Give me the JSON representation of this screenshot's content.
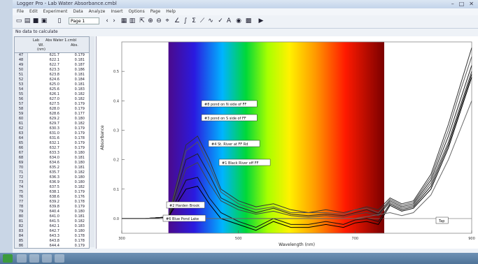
{
  "window": {
    "title": "Logger Pro - Lab Water Absorbance.cmbl",
    "controls": [
      "–",
      "□",
      "✕"
    ]
  },
  "menu": [
    "File",
    "Edit",
    "Experiment",
    "Data",
    "Analyze",
    "Insert",
    "Options",
    "Page",
    "Help"
  ],
  "toolbar": {
    "page": "Page 1"
  },
  "namebox": "No data to calculate",
  "table": {
    "title": "Lab",
    "subtitle": "Abs Water 1.cmbl",
    "col_x": "Wl.",
    "col_y": "Abs.",
    "units": "(nm)",
    "rows": [
      {
        "n": "47",
        "x": "621.7",
        "y": "0.179"
      },
      {
        "n": "48",
        "x": "622.1",
        "y": "0.181"
      },
      {
        "n": "49",
        "x": "622.7",
        "y": "0.187"
      },
      {
        "n": "50",
        "x": "623.3",
        "y": "0.186"
      },
      {
        "n": "51",
        "x": "623.8",
        "y": "0.181"
      },
      {
        "n": "52",
        "x": "624.6",
        "y": "0.184"
      },
      {
        "n": "53",
        "x": "625.0",
        "y": "0.181"
      },
      {
        "n": "54",
        "x": "625.6",
        "y": "0.183"
      },
      {
        "n": "55",
        "x": "626.1",
        "y": "0.182"
      },
      {
        "n": "56",
        "x": "627.0",
        "y": "0.182"
      },
      {
        "n": "57",
        "x": "627.5",
        "y": "0.179"
      },
      {
        "n": "58",
        "x": "628.0",
        "y": "0.179"
      },
      {
        "n": "59",
        "x": "628.6",
        "y": "0.177"
      },
      {
        "n": "60",
        "x": "629.2",
        "y": "0.180"
      },
      {
        "n": "61",
        "x": "629.7",
        "y": "0.182"
      },
      {
        "n": "62",
        "x": "630.3",
        "y": "0.179"
      },
      {
        "n": "63",
        "x": "631.0",
        "y": "0.179"
      },
      {
        "n": "64",
        "x": "631.6",
        "y": "0.178"
      },
      {
        "n": "65",
        "x": "632.1",
        "y": "0.179"
      },
      {
        "n": "66",
        "x": "632.7",
        "y": "0.179"
      },
      {
        "n": "67",
        "x": "633.3",
        "y": "0.180"
      },
      {
        "n": "68",
        "x": "634.0",
        "y": "0.181"
      },
      {
        "n": "69",
        "x": "634.6",
        "y": "0.180"
      },
      {
        "n": "70",
        "x": "635.2",
        "y": "0.181"
      },
      {
        "n": "71",
        "x": "635.7",
        "y": "0.182"
      },
      {
        "n": "72",
        "x": "636.3",
        "y": "0.180"
      },
      {
        "n": "73",
        "x": "636.9",
        "y": "0.180"
      },
      {
        "n": "74",
        "x": "637.5",
        "y": "0.182"
      },
      {
        "n": "75",
        "x": "638.1",
        "y": "0.179"
      },
      {
        "n": "76",
        "x": "638.6",
        "y": "0.176"
      },
      {
        "n": "77",
        "x": "639.2",
        "y": "0.178"
      },
      {
        "n": "78",
        "x": "639.8",
        "y": "0.179"
      },
      {
        "n": "79",
        "x": "640.4",
        "y": "0.180"
      },
      {
        "n": "80",
        "x": "641.0",
        "y": "0.181"
      },
      {
        "n": "81",
        "x": "641.5",
        "y": "0.182"
      },
      {
        "n": "82",
        "x": "642.1",
        "y": "0.183"
      },
      {
        "n": "83",
        "x": "642.7",
        "y": "0.180"
      },
      {
        "n": "84",
        "x": "643.3",
        "y": "0.178"
      },
      {
        "n": "85",
        "x": "643.8",
        "y": "0.178"
      },
      {
        "n": "86",
        "x": "644.4",
        "y": "0.179"
      },
      {
        "n": "87",
        "x": "645.0",
        "y": "0.177"
      }
    ]
  },
  "chart_data": {
    "type": "line",
    "xlabel": "Wavelength (nm)",
    "ylabel": "Absorbance",
    "xlim": [
      300,
      900
    ],
    "ylim": [
      -0.05,
      0.6
    ],
    "x_ticks": [
      300,
      500,
      700,
      900
    ],
    "y_ticks": [
      0.0,
      0.1,
      0.2,
      0.3,
      0.4,
      0.5
    ],
    "x_tick_labels": [
      "300",
      "500",
      "700",
      "900"
    ],
    "y_tick_labels": [
      "0.0",
      "0.1",
      "0.2",
      "0.3",
      "0.4",
      "0.5"
    ],
    "spectrum_band": [
      380,
      750
    ],
    "series": [
      {
        "name": "#8 pond on N side of FF",
        "color": "#333333",
        "x": [
          300,
          340,
          380,
          410,
          430,
          450,
          470,
          500,
          530,
          560,
          590,
          620,
          650,
          680,
          700,
          720,
          740,
          760,
          780,
          800,
          830,
          860,
          880,
          900
        ],
        "y": [
          0.0,
          0.0,
          0.005,
          0.25,
          0.28,
          0.2,
          0.1,
          0.06,
          0.04,
          0.05,
          0.03,
          0.02,
          0.03,
          0.02,
          0.03,
          0.04,
          0.03,
          0.07,
          0.05,
          0.06,
          0.15,
          0.32,
          0.45,
          0.58
        ]
      },
      {
        "name": "#3 pond on S side of FF",
        "color": "#555555",
        "x": [
          300,
          340,
          380,
          410,
          430,
          450,
          470,
          500,
          530,
          560,
          590,
          620,
          650,
          680,
          700,
          720,
          740,
          760,
          780,
          800,
          830,
          860,
          880,
          900
        ],
        "y": [
          0.0,
          0.0,
          0.005,
          0.23,
          0.26,
          0.18,
          0.09,
          0.05,
          0.03,
          0.04,
          0.02,
          0.02,
          0.02,
          0.015,
          0.03,
          0.035,
          0.02,
          0.065,
          0.045,
          0.055,
          0.14,
          0.3,
          0.43,
          0.55
        ]
      },
      {
        "name": "#4 St. River at FF Rd",
        "color": "#222222",
        "x": [
          300,
          340,
          380,
          410,
          430,
          450,
          470,
          500,
          530,
          560,
          590,
          620,
          650,
          680,
          700,
          720,
          740,
          760,
          780,
          800,
          830,
          860,
          880,
          900
        ],
        "y": [
          0.0,
          0.0,
          0.005,
          0.2,
          0.22,
          0.15,
          0.07,
          0.04,
          0.02,
          0.035,
          0.015,
          0.01,
          0.015,
          0.01,
          0.02,
          0.03,
          0.015,
          0.06,
          0.04,
          0.05,
          0.13,
          0.28,
          0.4,
          0.52
        ]
      },
      {
        "name": "#1 Black River off FF",
        "color": "#444444",
        "x": [
          300,
          340,
          380,
          410,
          430,
          450,
          470,
          500,
          530,
          560,
          590,
          620,
          650,
          680,
          700,
          720,
          740,
          760,
          780,
          800,
          830,
          860,
          880,
          900
        ],
        "y": [
          0.0,
          0.0,
          0.005,
          0.17,
          0.19,
          0.12,
          0.06,
          0.03,
          0.015,
          0.025,
          0.01,
          0.005,
          0.01,
          0.005,
          0.015,
          0.02,
          0.01,
          0.055,
          0.035,
          0.045,
          0.12,
          0.26,
          0.38,
          0.5
        ]
      },
      {
        "name": "#2 Harden Brook",
        "color": "#111111",
        "x": [
          300,
          340,
          380,
          410,
          430,
          450,
          470,
          500,
          530,
          560,
          590,
          620,
          650,
          680,
          700,
          720,
          740,
          760,
          780,
          800,
          830,
          860,
          880,
          900
        ],
        "y": [
          0.0,
          0.0,
          0.005,
          0.13,
          0.14,
          0.07,
          0.02,
          -0.01,
          -0.03,
          0.0,
          -0.02,
          -0.02,
          -0.01,
          -0.02,
          -0.005,
          0.0,
          -0.01,
          0.05,
          0.03,
          0.04,
          0.11,
          0.25,
          0.37,
          0.49
        ]
      },
      {
        "name": "#6 Blue Pond Lake",
        "color": "#000000",
        "x": [
          300,
          340,
          380,
          410,
          430,
          450,
          470,
          500,
          530,
          560,
          590,
          620,
          650,
          680,
          700,
          720,
          740,
          760,
          780,
          800,
          830,
          860,
          880,
          900
        ],
        "y": [
          0.0,
          0.0,
          0.005,
          0.1,
          0.11,
          0.05,
          0.0,
          -0.02,
          -0.04,
          -0.01,
          -0.03,
          -0.03,
          -0.02,
          -0.03,
          -0.015,
          -0.01,
          -0.02,
          0.045,
          0.025,
          0.035,
          0.1,
          0.24,
          0.36,
          0.48
        ]
      },
      {
        "name": "Tap",
        "color": "#666666",
        "x": [
          300,
          400,
          500,
          600,
          700,
          760,
          780,
          800,
          830,
          860,
          880,
          900
        ],
        "y": [
          0.0,
          0.0,
          0.0,
          0.0,
          0.0,
          0.02,
          0.01,
          0.02,
          0.08,
          0.2,
          0.3,
          0.4
        ]
      }
    ]
  }
}
